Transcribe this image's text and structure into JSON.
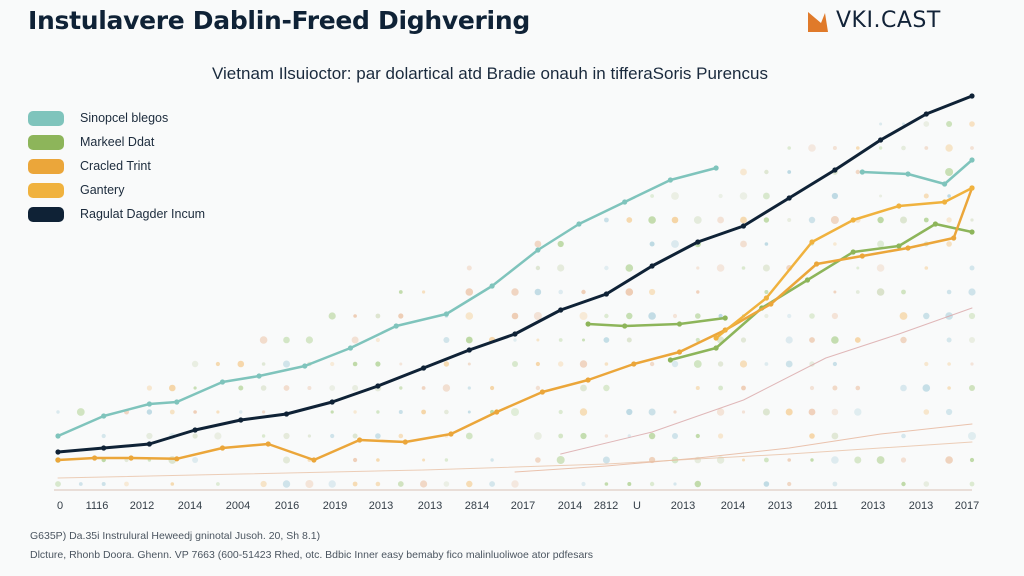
{
  "header": {
    "title": "Instulavere Dablin-Freed Dighvering",
    "brand": "VKI.CAST",
    "brand_color": "#e07a2a"
  },
  "footnotes": [
    "G635P) Da.35i Instrulural Heweedj gninotal Jusoh. 20, Sh 8.1)",
    "Dlcture, Rhonb Doora. Ghenn. VP 7663 (600-51423 Rhed, otc. Bdbic Inner easy bemaby fico malinluoliwoe ator pdfesars"
  ],
  "chart_data": {
    "type": "line",
    "title": "Vietnam Ilsuioctor: par dolartical atd Bradie onauh in tifferaSoris Purencus",
    "xlabel": "",
    "ylabel": "",
    "x_index_range": [
      0,
      20
    ],
    "ylim": [
      0,
      100
    ],
    "grid": false,
    "legend_position": "top-left",
    "x_tick_labels": [
      "0",
      "1116",
      "2012",
      "2014",
      "2004",
      "2016",
      "2019",
      "2013",
      "2013",
      "2814",
      "2017",
      "2014",
      "2812",
      "U",
      "2013",
      "2014",
      "2013",
      "2011",
      "2013",
      "2013",
      "2017"
    ],
    "series": [
      {
        "name": "Sinopcel blegos",
        "color": "#7fc4bc",
        "points": [
          [
            0.0,
            13.5
          ],
          [
            1.0,
            18.5
          ],
          [
            2.0,
            21.5
          ],
          [
            2.6,
            22.0
          ],
          [
            3.6,
            27.0
          ],
          [
            4.4,
            28.5
          ],
          [
            5.4,
            31.0
          ],
          [
            6.4,
            35.5
          ],
          [
            7.4,
            41.0
          ],
          [
            8.5,
            44.0
          ],
          [
            9.5,
            51.0
          ],
          [
            10.5,
            60.0
          ],
          [
            11.4,
            66.5
          ],
          [
            12.4,
            72.0
          ],
          [
            13.4,
            77.5
          ],
          [
            14.4,
            80.5
          ]
        ]
      },
      {
        "name": "Sinopcel blegos (segment 2)",
        "color": "#7fc4bc",
        "points": [
          [
            17.6,
            79.5
          ],
          [
            18.6,
            79.0
          ],
          [
            19.4,
            76.5
          ],
          [
            20.0,
            82.5
          ]
        ]
      },
      {
        "name": "Markeel Ddat",
        "color": "#8db55a",
        "points": [
          [
            13.4,
            32.5
          ],
          [
            14.4,
            35.5
          ],
          [
            15.4,
            45.5
          ],
          [
            16.4,
            52.5
          ],
          [
            17.4,
            59.5
          ],
          [
            18.4,
            61.0
          ],
          [
            19.2,
            66.5
          ],
          [
            20.0,
            64.5
          ]
        ]
      },
      {
        "name": "Markeel Ddat (short segment)",
        "color": "#8db55a",
        "points": [
          [
            11.6,
            41.5
          ],
          [
            12.4,
            41.0
          ],
          [
            13.6,
            41.5
          ],
          [
            14.6,
            43.0
          ]
        ]
      },
      {
        "name": "Cracled Trint",
        "color": "#eba63a",
        "points": [
          [
            0.0,
            7.5
          ],
          [
            0.8,
            8.0
          ],
          [
            1.6,
            8.0
          ],
          [
            2.6,
            7.8
          ],
          [
            3.6,
            10.5
          ],
          [
            4.6,
            11.5
          ],
          [
            5.6,
            7.5
          ],
          [
            6.6,
            12.5
          ],
          [
            7.6,
            12.0
          ],
          [
            8.6,
            14.0
          ],
          [
            9.6,
            19.5
          ],
          [
            10.6,
            24.5
          ],
          [
            11.6,
            27.5
          ],
          [
            12.6,
            31.5
          ],
          [
            13.6,
            34.5
          ],
          [
            14.6,
            40.0
          ],
          [
            15.6,
            46.5
          ],
          [
            16.6,
            56.5
          ],
          [
            17.6,
            58.5
          ],
          [
            18.6,
            60.5
          ],
          [
            19.6,
            63.0
          ],
          [
            20.0,
            75.5
          ]
        ]
      },
      {
        "name": "Gantery",
        "color": "#f0b23e",
        "points": [
          [
            14.4,
            38.0
          ],
          [
            15.5,
            48.0
          ],
          [
            16.5,
            62.0
          ],
          [
            17.4,
            67.5
          ],
          [
            18.4,
            71.0
          ],
          [
            19.4,
            72.0
          ],
          [
            20.0,
            75.5
          ]
        ]
      },
      {
        "name": "Ragulat Dagder Incum",
        "color": "#0f2236",
        "points": [
          [
            0.0,
            9.5
          ],
          [
            1.0,
            10.5
          ],
          [
            2.0,
            11.5
          ],
          [
            3.0,
            15.0
          ],
          [
            4.0,
            17.5
          ],
          [
            5.0,
            19.0
          ],
          [
            6.0,
            22.0
          ],
          [
            7.0,
            26.0
          ],
          [
            8.0,
            30.5
          ],
          [
            9.0,
            35.0
          ],
          [
            10.0,
            39.0
          ],
          [
            11.0,
            45.0
          ],
          [
            12.0,
            49.0
          ],
          [
            13.0,
            56.0
          ],
          [
            14.0,
            62.0
          ],
          [
            15.0,
            66.0
          ],
          [
            16.0,
            73.0
          ],
          [
            17.0,
            80.0
          ],
          [
            18.0,
            87.5
          ],
          [
            19.0,
            94.0
          ],
          [
            20.0,
            98.5
          ]
        ]
      },
      {
        "name": "faint-trend-1",
        "color": "#e6b49a",
        "points": [
          [
            10.0,
            4.5
          ],
          [
            12.0,
            6.0
          ],
          [
            14.0,
            8.0
          ],
          [
            16.0,
            10.5
          ],
          [
            18.0,
            14.0
          ],
          [
            20.0,
            16.5
          ]
        ]
      },
      {
        "name": "faint-trend-2",
        "color": "#d9a6a8",
        "points": [
          [
            11.0,
            9.0
          ],
          [
            13.0,
            14.5
          ],
          [
            15.0,
            22.5
          ],
          [
            16.8,
            33.0
          ],
          [
            18.4,
            39.0
          ],
          [
            20.0,
            45.5
          ]
        ]
      },
      {
        "name": "faint-trend-3",
        "color": "#e8c2a6",
        "points": [
          [
            0.0,
            3.0
          ],
          [
            4.0,
            4.0
          ],
          [
            8.0,
            5.0
          ],
          [
            12.0,
            6.5
          ],
          [
            16.0,
            9.0
          ],
          [
            20.0,
            12.0
          ]
        ]
      }
    ],
    "legend": [
      {
        "label": "Sinopcel blegos",
        "color": "#7fc4bc"
      },
      {
        "label": "Markeel Ddat",
        "color": "#8db55a"
      },
      {
        "label": "Cracled Trint",
        "color": "#eba63a"
      },
      {
        "label": "Gantery",
        "color": "#f0b23e"
      },
      {
        "label": "Ragulat Dagder Incum",
        "color": "#0f2236"
      }
    ]
  }
}
